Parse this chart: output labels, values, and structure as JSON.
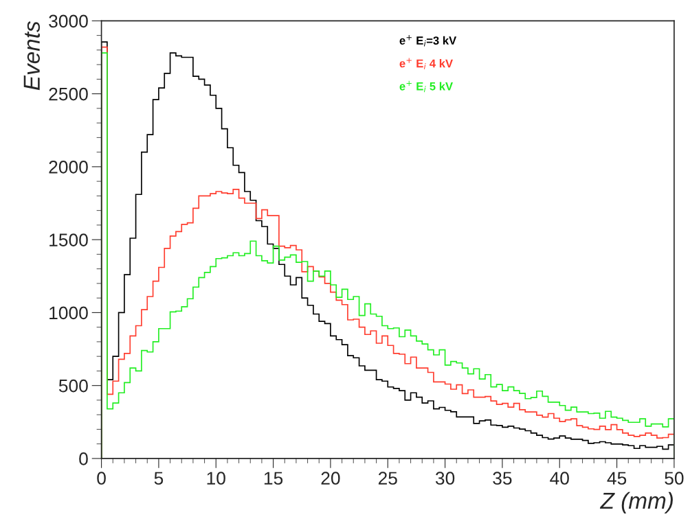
{
  "chart_data": {
    "type": "histogram",
    "xlabel": "Z (mm)",
    "ylabel": "Events",
    "bins": [
      0,
      0.5,
      1,
      1.5,
      2,
      2.5,
      3,
      3.5,
      4,
      4.5,
      5,
      5.5,
      6,
      6.5,
      7,
      7.5,
      8,
      8.5,
      9,
      9.5,
      10,
      10.5,
      11,
      11.5,
      12,
      12.5,
      13,
      13.5,
      14,
      14.5,
      15,
      15.5,
      16,
      16.5,
      17,
      17.5,
      18,
      18.5,
      19,
      19.5,
      20,
      20.5,
      21,
      21.5,
      22,
      22.5,
      23,
      23.5,
      24,
      24.5,
      25,
      25.5,
      26,
      26.5,
      27,
      27.5,
      28,
      28.5,
      29,
      29.5,
      30,
      30.5,
      31,
      31.5,
      32,
      32.5,
      33,
      33.5,
      34,
      34.5,
      35,
      35.5,
      36,
      36.5,
      37,
      37.5,
      38,
      38.5,
      39,
      39.5,
      40,
      40.5,
      41,
      41.5,
      42,
      42.5,
      43,
      43.5,
      44,
      44.5,
      45,
      45.5,
      46,
      46.5,
      47,
      47.5,
      48,
      48.5,
      49,
      49.5,
      50
    ],
    "series": [
      {
        "name": "e$^{+}$ E$_{i}$=3 kV",
        "color": "#000000",
        "values": [
          2855,
          540,
          700,
          1000,
          1260,
          1510,
          1810,
          2100,
          2220,
          2460,
          2540,
          2640,
          2780,
          2760,
          2750,
          2750,
          2620,
          2600,
          2560,
          2490,
          2400,
          2260,
          2130,
          2010,
          1960,
          1830,
          1770,
          1630,
          1590,
          1470,
          1440,
          1330,
          1250,
          1190,
          1240,
          1100,
          1050,
          990,
          940,
          925,
          840,
          815,
          780,
          705,
          690,
          635,
          605,
          605,
          540,
          530,
          490,
          480,
          465,
          400,
          450,
          420,
          380,
          395,
          340,
          350,
          330,
          320,
          285,
          285,
          285,
          240,
          258,
          264,
          229,
          226,
          214,
          221,
          209,
          201,
          190,
          174,
          159,
          143,
          133,
          140,
          154,
          140,
          132,
          132,
          124,
          104,
          108,
          115,
          108,
          99,
          99,
          93,
          88,
          69,
          88,
          77,
          77,
          83,
          64,
          93
        ]
      },
      {
        "name": "e$^{+}$ E$_{i}$ 4 kV",
        "color": "#ff3c2e",
        "values": [
          2820,
          440,
          530,
          680,
          720,
          840,
          910,
          1020,
          1110,
          1215,
          1310,
          1440,
          1525,
          1555,
          1605,
          1615,
          1715,
          1800,
          1800,
          1815,
          1830,
          1820,
          1815,
          1845,
          1785,
          1750,
          1750,
          1645,
          1705,
          1665,
          1665,
          1455,
          1445,
          1460,
          1430,
          1280,
          1315,
          1285,
          1245,
          1200,
          1140,
          1085,
          1055,
          950,
          955,
          900,
          850,
          875,
          790,
          840,
          775,
          720,
          715,
          650,
          695,
          620,
          620,
          590,
          525,
          525,
          510,
          475,
          505,
          445,
          470,
          420,
          420,
          425,
          394,
          371,
          378,
          352,
          378,
          334,
          319,
          319,
          297,
          284,
          308,
          276,
          253,
          265,
          272,
          225,
          214,
          203,
          199,
          221,
          198,
          232,
          198,
          174,
          159,
          151,
          159,
          174,
          159,
          140,
          143,
          166
        ]
      },
      {
        "name": "e$^{+}$ E$_{i}$ 5 kV",
        "color": "#22ee22",
        "values": [
          2780,
          340,
          380,
          450,
          520,
          620,
          600,
          740,
          730,
          800,
          890,
          890,
          1005,
          1010,
          1040,
          1095,
          1175,
          1240,
          1275,
          1315,
          1370,
          1375,
          1390,
          1410,
          1390,
          1405,
          1490,
          1390,
          1355,
          1340,
          1455,
          1360,
          1380,
          1395,
          1345,
          1350,
          1215,
          1285,
          1250,
          1285,
          1190,
          1105,
          1160,
          1090,
          1110,
          980,
          1060,
          990,
          975,
          910,
          890,
          895,
          835,
          880,
          840,
          805,
          785,
          745,
          710,
          745,
          640,
          665,
          655,
          620,
          580,
          615,
          545,
          575,
          491,
          507,
          465,
          491,
          465,
          446,
          410,
          418,
          462,
          426,
          386,
          386,
          363,
          331,
          352,
          319,
          319,
          308,
          311,
          276,
          323,
          284,
          276,
          261,
          248,
          248,
          272,
          221,
          237,
          237,
          217,
          272
        ]
      }
    ],
    "xlim": [
      0,
      50
    ],
    "ylim": [
      0,
      3000
    ],
    "xticks": [
      0,
      5,
      10,
      15,
      20,
      25,
      30,
      35,
      40,
      45,
      50
    ],
    "yticks": [
      0,
      500,
      1000,
      1500,
      2000,
      2500,
      3000
    ],
    "legend": "top",
    "grid": false
  }
}
